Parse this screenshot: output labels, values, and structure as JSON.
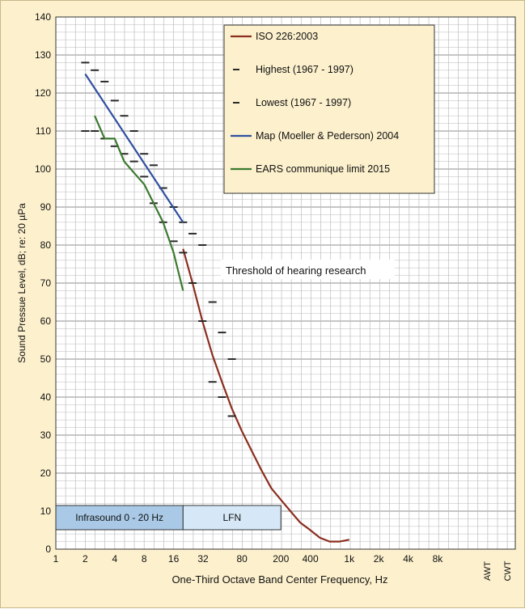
{
  "chart_data": {
    "type": "line",
    "title": "",
    "xlabel": "One-Third Octave Band Center Frequency, Hz",
    "ylabel": "Sound Pressue Level, dB; re: 20 µPa",
    "x_scale": "log2",
    "ylim": [
      0,
      140
    ],
    "y_ticks": [
      0,
      10,
      20,
      30,
      40,
      50,
      60,
      70,
      80,
      90,
      100,
      110,
      120,
      130,
      140
    ],
    "x_ticks": [
      {
        "label": "1",
        "hz": 1
      },
      {
        "label": "2",
        "hz": 2
      },
      {
        "label": "4",
        "hz": 4
      },
      {
        "label": "8",
        "hz": 8
      },
      {
        "label": "16",
        "hz": 16
      },
      {
        "label": "32",
        "hz": 32
      },
      {
        "label": "80",
        "hz": 80
      },
      {
        "label": "200",
        "hz": 200
      },
      {
        "label": "400",
        "hz": 400
      },
      {
        "label": "1k",
        "hz": 1000
      },
      {
        "label": "2k",
        "hz": 2000
      },
      {
        "label": "4k",
        "hz": 4000
      },
      {
        "label": "8k",
        "hz": 8000
      }
    ],
    "extra_x_labels": [
      "AWT",
      "CWT"
    ],
    "grid": true,
    "legend_position": "top-right",
    "series": [
      {
        "name": "ISO 226:2003",
        "color": "#8b2e1f",
        "style": "line",
        "points": [
          [
            20,
            79
          ],
          [
            25,
            70
          ],
          [
            31.5,
            60
          ],
          [
            40,
            51
          ],
          [
            50,
            44
          ],
          [
            63,
            37
          ],
          [
            80,
            31
          ],
          [
            100,
            26
          ],
          [
            125,
            21
          ],
          [
            160,
            16
          ],
          [
            200,
            13
          ],
          [
            250,
            10
          ],
          [
            315,
            7
          ],
          [
            400,
            5
          ],
          [
            500,
            3
          ],
          [
            630,
            2
          ],
          [
            800,
            2
          ],
          [
            1000,
            2.5
          ]
        ]
      },
      {
        "name": "Highest (1967 - 1997)",
        "color": "#2a2a2a",
        "style": "dash",
        "points": [
          [
            2,
            128
          ],
          [
            2.5,
            126
          ],
          [
            3.15,
            123
          ],
          [
            4,
            118
          ],
          [
            5,
            114
          ],
          [
            6.3,
            110
          ],
          [
            8,
            104
          ],
          [
            10,
            101
          ],
          [
            12.5,
            95
          ],
          [
            16,
            90
          ],
          [
            20,
            86
          ],
          [
            25,
            83
          ],
          [
            31.5,
            80
          ],
          [
            40,
            65
          ],
          [
            50,
            57
          ],
          [
            63,
            50
          ]
        ]
      },
      {
        "name": "Lowest (1967 - 1997)",
        "color": "#2a2a2a",
        "style": "dash",
        "points": [
          [
            2,
            110
          ],
          [
            2.5,
            110
          ],
          [
            3.15,
            108
          ],
          [
            4,
            106
          ],
          [
            5,
            104
          ],
          [
            6.3,
            102
          ],
          [
            8,
            98
          ],
          [
            10,
            91
          ],
          [
            12.5,
            86
          ],
          [
            16,
            81
          ],
          [
            20,
            78
          ],
          [
            25,
            70
          ],
          [
            31.5,
            60
          ],
          [
            40,
            44
          ],
          [
            50,
            40
          ],
          [
            63,
            35
          ]
        ]
      },
      {
        "name": "Map (Moeller & Pederson) 2004",
        "color": "#2f4f9f",
        "style": "line",
        "points": [
          [
            2,
            125
          ],
          [
            20,
            86
          ]
        ]
      },
      {
        "name": "EARS communique limit 2015",
        "color": "#3a7a2e",
        "style": "line",
        "points": [
          [
            2.5,
            114
          ],
          [
            3.15,
            108
          ],
          [
            4,
            108
          ],
          [
            5,
            102
          ],
          [
            6.3,
            99
          ],
          [
            8,
            96
          ],
          [
            10,
            91
          ],
          [
            12.5,
            86
          ],
          [
            16,
            78
          ],
          [
            20,
            68
          ]
        ]
      }
    ],
    "annotations": [
      "Threshold of hearing research"
    ],
    "bands": [
      {
        "label": "Infrasound 0 - 20 Hz",
        "from_hz": 1,
        "to_hz": 20,
        "color": "#a9c9e6"
      },
      {
        "label": "LFN",
        "from_hz": 20,
        "to_hz": 200,
        "color": "#d6e8f7"
      }
    ]
  }
}
